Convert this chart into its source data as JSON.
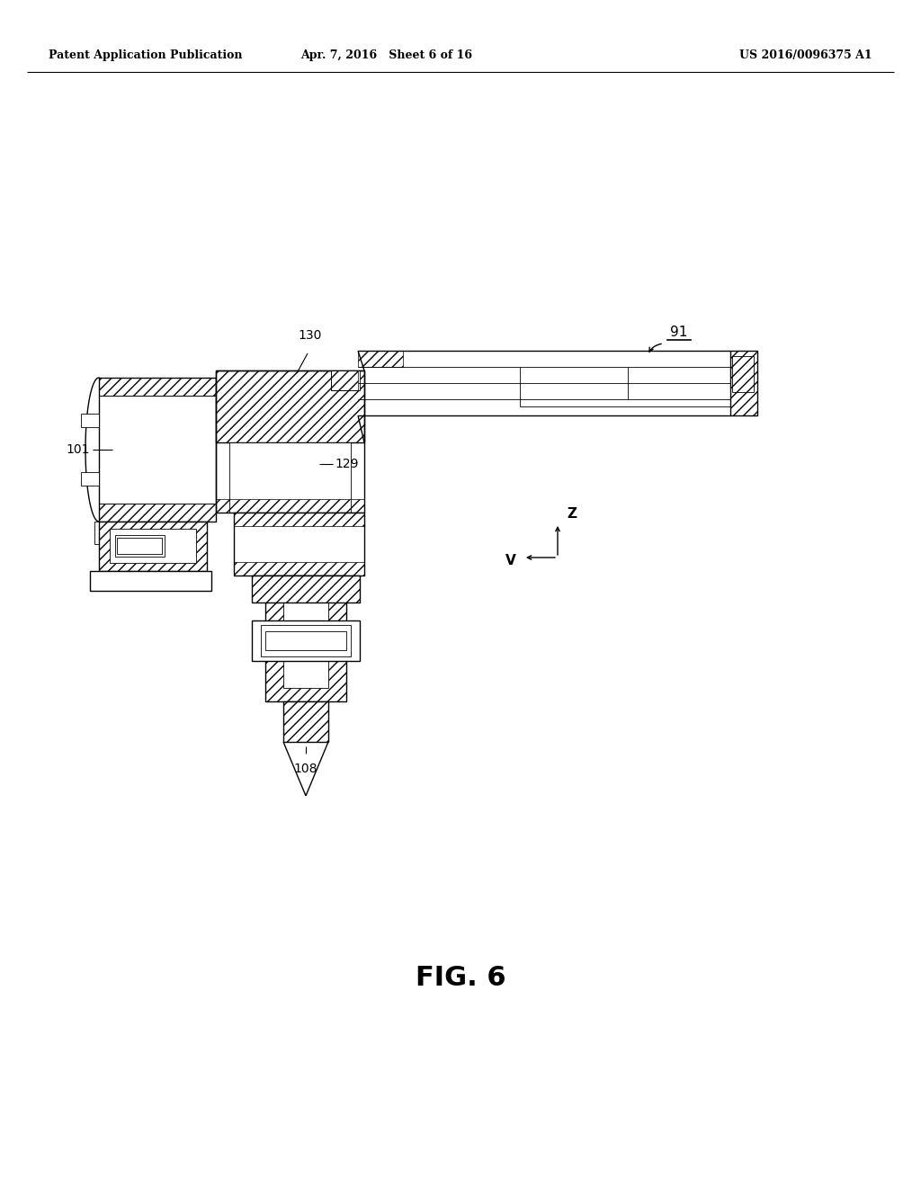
{
  "bg_color": "#ffffff",
  "header_left": "Patent Application Publication",
  "header_mid": "Apr. 7, 2016   Sheet 6 of 16",
  "header_right": "US 2016/0096375 A1",
  "fig_label": "FIG. 6",
  "line_color": "#000000",
  "lw": 1.0,
  "thin_lw": 0.6,
  "hatch_lw": 0.5
}
